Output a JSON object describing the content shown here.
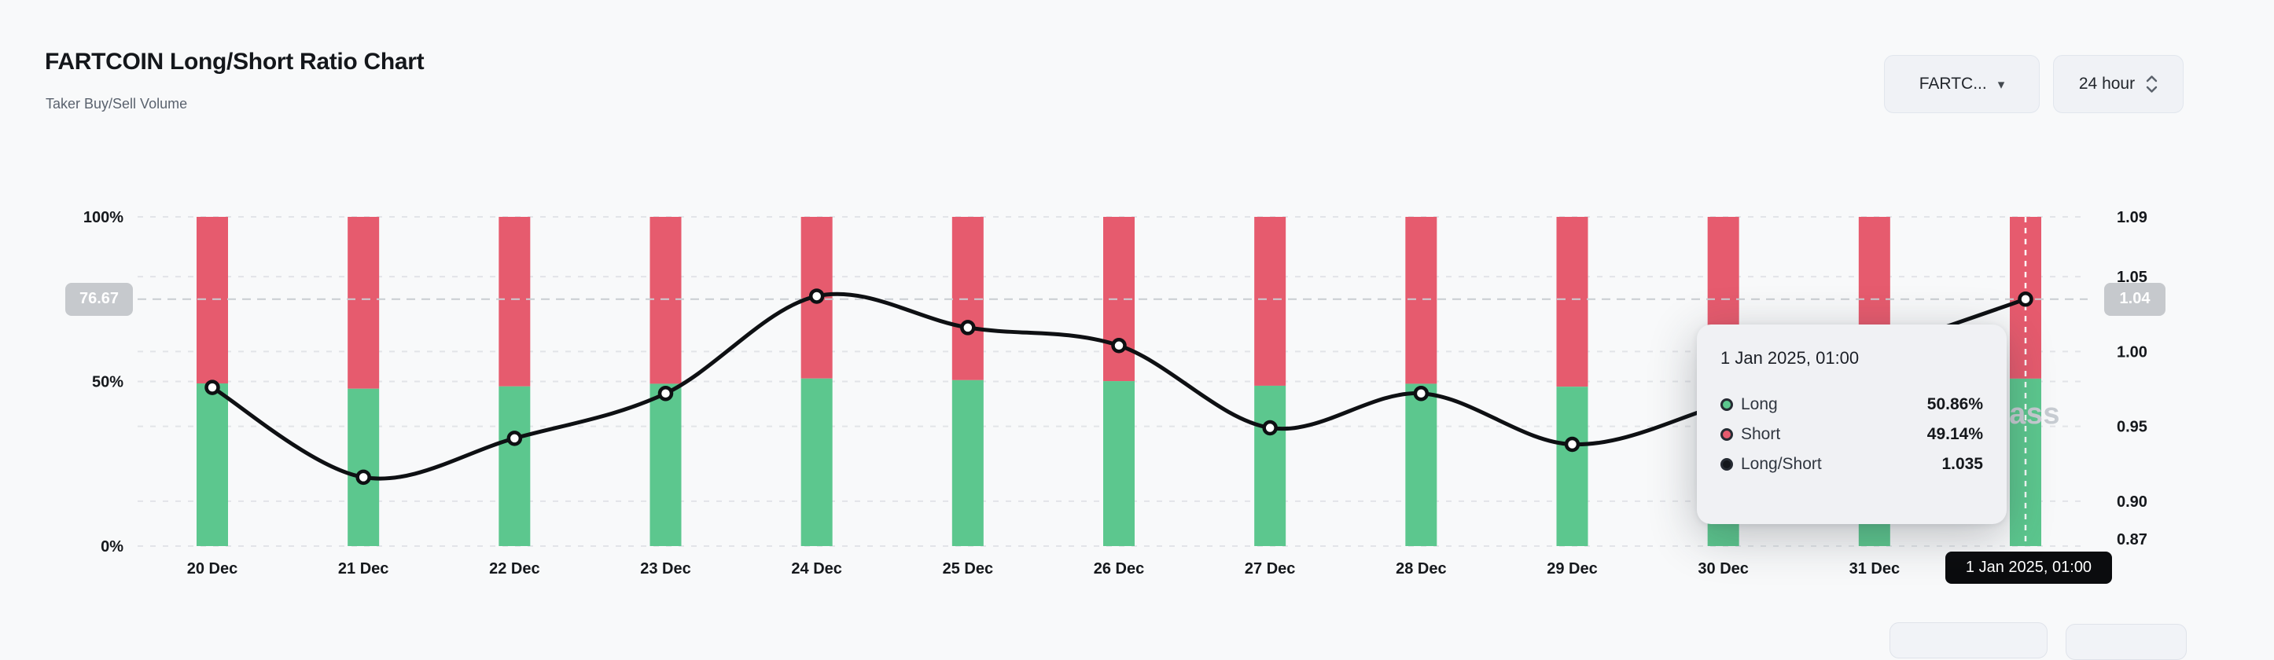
{
  "header": {
    "title": "FARTCOIN Long/Short Ratio Chart",
    "subtitle": "Taker Buy/Sell Volume"
  },
  "controls": {
    "symbol_select": "FARTC...",
    "interval_select": "24 hour"
  },
  "watermark": "coinglass",
  "colors": {
    "long_green": "#5cc78e",
    "short_red": "#e65b6e",
    "ratio_line": "#0e1013",
    "grid": "#e2e4e8",
    "crosshair": "#c9cdd2",
    "axis_text": "#15181c",
    "badge_gray": "#c6c9cd",
    "badge_black": "#0b0c0e",
    "background": "#f8f9fa"
  },
  "chart_data": {
    "type": "bar",
    "subtype": "stacked-percent-bars-with-ratio-line",
    "title": "FARTCOIN Long/Short Ratio Chart",
    "categories": [
      "20 Dec",
      "21 Dec",
      "22 Dec",
      "23 Dec",
      "24 Dec",
      "25 Dec",
      "26 Dec",
      "27 Dec",
      "28 Dec",
      "29 Dec",
      "30 Dec",
      "31 Dec",
      "1 Jan"
    ],
    "series": [
      {
        "name": "Long",
        "unit": "%",
        "axis": "left",
        "color": "#5cc78e",
        "values": [
          49.4,
          47.8,
          48.5,
          49.3,
          50.9,
          50.4,
          50.1,
          48.7,
          49.3,
          48.4,
          49.1,
          50.0,
          50.86
        ]
      },
      {
        "name": "Short",
        "unit": "%",
        "axis": "left",
        "color": "#e65b6e",
        "values": [
          50.6,
          52.2,
          51.5,
          50.7,
          49.1,
          49.6,
          49.9,
          51.3,
          50.7,
          51.6,
          50.9,
          50.0,
          49.14
        ]
      },
      {
        "name": "Long/Short",
        "axis": "right",
        "color": "#0e1013",
        "values": [
          0.976,
          0.916,
          0.942,
          0.972,
          1.037,
          1.016,
          1.004,
          0.949,
          0.972,
          0.938,
          0.965,
          1.0,
          1.035
        ]
      }
    ],
    "left_axis": {
      "min": 0,
      "max": 100,
      "ticks": [
        {
          "label": "0%",
          "value": 0
        },
        {
          "label": "50%",
          "value": 50
        },
        {
          "label": "100%",
          "value": 100
        }
      ]
    },
    "right_axis": {
      "min": 0.87,
      "max": 1.09,
      "ticks": [
        {
          "label": "1.09",
          "value": 1.09
        },
        {
          "label": "1.05",
          "value": 1.05
        },
        {
          "label": "1.00",
          "value": 1.0
        },
        {
          "label": "0.95",
          "value": 0.95
        },
        {
          "label": "0.90",
          "value": 0.9
        },
        {
          "label": "0.87",
          "value": 0.87
        }
      ]
    },
    "grid": "dashed-horizontal",
    "legend_position": "none",
    "crosshair": {
      "hovered_category": "1 Jan",
      "ratio_value": 1.035,
      "left_badge": "76.67",
      "right_badge": "1.04",
      "x_badge": "1 Jan 2025, 01:00"
    }
  },
  "tooltip": {
    "title": "1 Jan 2025, 01:00",
    "rows": [
      {
        "label": "Long",
        "value": "50.86%",
        "color": "#5cc78e"
      },
      {
        "label": "Short",
        "value": "49.14%",
        "color": "#e65b6e"
      },
      {
        "label": "Long/Short",
        "value": "1.035",
        "color": "#14171b"
      }
    ]
  }
}
